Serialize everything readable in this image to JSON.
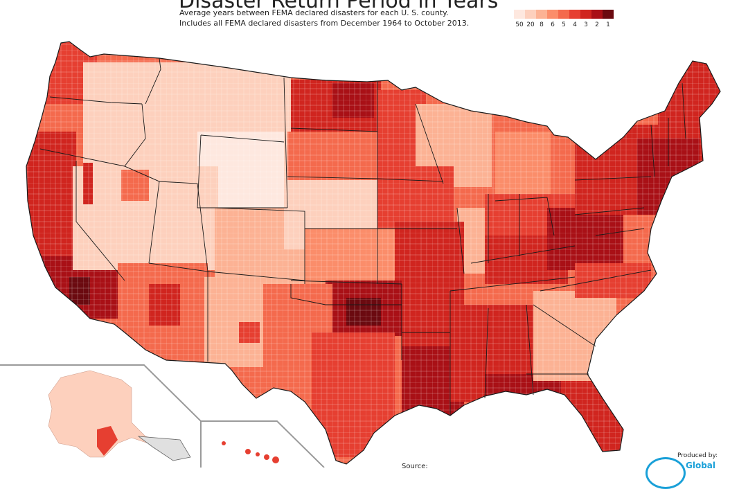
{
  "title": "Disaster Return Period in Years",
  "subtitle_line1": "Average years between FEMA declared disasters for each U. S. county.",
  "subtitle_line2": "Includes all FEMA declared disasters from December 1964 to October 2013.",
  "legend": {
    "labels": [
      "50",
      "20",
      "8",
      "6",
      "5",
      "4",
      "3",
      "2",
      "1"
    ],
    "colors": [
      "#fee8df",
      "#fdd0bd",
      "#fcb294",
      "#fb8d6a",
      "#f46a4d",
      "#e63f31",
      "#d0251f",
      "#a91016",
      "#6b0a10"
    ]
  },
  "source_label": "Source:",
  "produced_by": "Produced by:",
  "brand": "Global",
  "colors": {
    "state_border": "#1a1a1a",
    "inset_frame": "#9a9a9a",
    "accent": "#1aa0d8"
  }
}
